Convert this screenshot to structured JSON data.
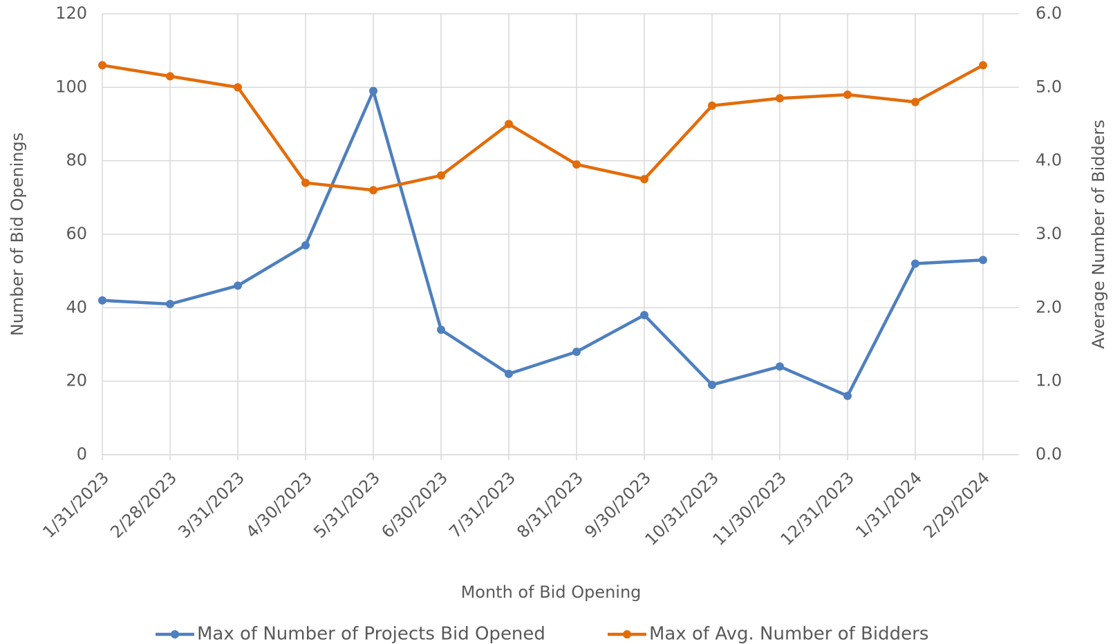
{
  "chart_data": {
    "type": "line",
    "x_label": "Month of Bid Opening",
    "y_label": "Number of Bid Openings",
    "y2_label": "Average Number of Bidders",
    "categories": [
      "1/31/2023",
      "2/28/2023",
      "3/31/2023",
      "4/30/2023",
      "5/31/2023",
      "6/30/2023",
      "7/31/2023",
      "8/31/2023",
      "9/30/2023",
      "10/31/2023",
      "11/30/2023",
      "12/31/2023",
      "1/31/2024",
      "2/29/2024"
    ],
    "series": [
      {
        "name": "Max of Number of Projects Bid Opened",
        "color": "#4e7fbf",
        "axis": "y",
        "values": [
          42,
          41,
          46,
          57,
          99,
          34,
          22,
          28,
          38,
          19,
          24,
          16,
          52,
          53
        ]
      },
      {
        "name": "Max of Avg. Number of Bidders",
        "color": "#e36c0a",
        "axis": "y2",
        "values": [
          5.3,
          5.15,
          5.0,
          3.7,
          3.6,
          3.8,
          4.5,
          3.95,
          3.75,
          4.75,
          4.85,
          4.9,
          4.8,
          5.3
        ]
      }
    ],
    "ylim": [
      0,
      120
    ],
    "yticks": [
      0,
      20,
      40,
      60,
      80,
      100,
      120
    ],
    "y2lim": [
      0,
      6
    ],
    "y2ticks": [
      {
        "value": 0,
        "label": "0.0"
      },
      {
        "value": 1,
        "label": "1.0"
      },
      {
        "value": 2,
        "label": "2.0"
      },
      {
        "value": 3,
        "label": "3.0"
      },
      {
        "value": 4,
        "label": "4.0"
      },
      {
        "value": 5,
        "label": "5.0"
      },
      {
        "value": 6,
        "label": "6.0"
      }
    ],
    "grid": true,
    "legend": "bottom"
  }
}
